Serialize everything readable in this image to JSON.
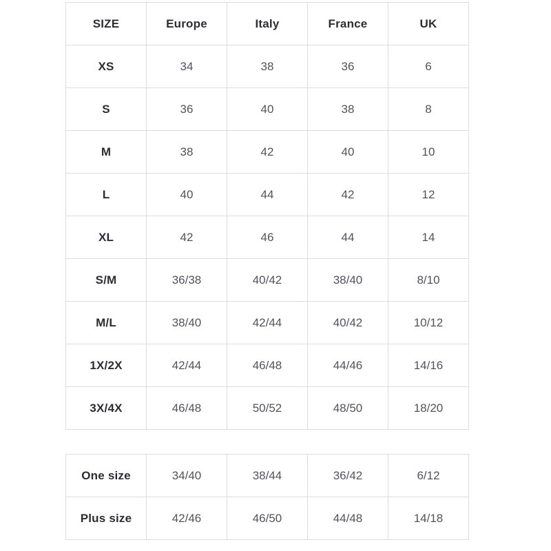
{
  "size_chart": {
    "headers": {
      "size": "SIZE",
      "europe": "Europe",
      "italy": "Italy",
      "france": "France",
      "uk": "UK"
    },
    "rows": [
      {
        "label": "XS",
        "europe": "34",
        "italy": "38",
        "france": "36",
        "uk": "6"
      },
      {
        "label": "S",
        "europe": "36",
        "italy": "40",
        "france": "38",
        "uk": "8"
      },
      {
        "label": "M",
        "europe": "38",
        "italy": "42",
        "france": "40",
        "uk": "10"
      },
      {
        "label": "L",
        "europe": "40",
        "italy": "44",
        "france": "42",
        "uk": "12"
      },
      {
        "label": "XL",
        "europe": "42",
        "italy": "46",
        "france": "44",
        "uk": "14"
      },
      {
        "label": "S/M",
        "europe": "36/38",
        "italy": "40/42",
        "france": "38/40",
        "uk": "8/10"
      },
      {
        "label": "M/L",
        "europe": "38/40",
        "italy": "42/44",
        "france": "40/42",
        "uk": "10/12"
      },
      {
        "label": "1X/2X",
        "europe": "42/44",
        "italy": "46/48",
        "france": "44/46",
        "uk": "14/16"
      },
      {
        "label": "3X/4X",
        "europe": "46/48",
        "italy": "50/52",
        "france": "48/50",
        "uk": "18/20"
      }
    ]
  },
  "special_sizes": {
    "rows": [
      {
        "label": "One size",
        "europe": "34/40",
        "italy": "38/44",
        "france": "36/42",
        "uk": "6/12"
      },
      {
        "label": "Plus size",
        "europe": "42/46",
        "italy": "46/50",
        "france": "44/48",
        "uk": "14/18"
      }
    ]
  },
  "colors": {
    "border": "#dcdcdc",
    "header_text": "#2d2c33",
    "value_text": "#53525c",
    "background": "#ffffff"
  }
}
